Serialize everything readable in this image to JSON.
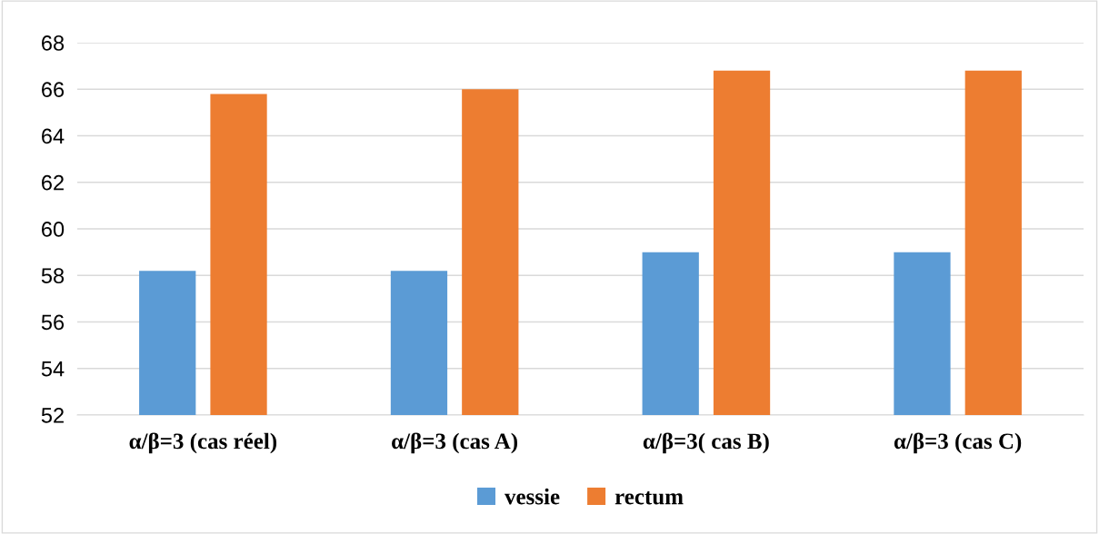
{
  "chart_data": {
    "type": "bar",
    "categories": [
      "α/β=3 (cas réel)",
      "α/β=3 (cas A)",
      "α/β=3( cas B)",
      "α/β=3 (cas C)"
    ],
    "series": [
      {
        "name": "vessie",
        "color": "#5b9bd5",
        "values": [
          58.2,
          58.2,
          59,
          59
        ]
      },
      {
        "name": "rectum",
        "color": "#ed7d31",
        "values": [
          65.8,
          66,
          66.8,
          66.8
        ]
      }
    ],
    "ylim": [
      52,
      68
    ],
    "yticks": [
      52,
      54,
      56,
      58,
      60,
      62,
      64,
      66,
      68
    ],
    "grid": "y",
    "legend": "bottom"
  }
}
